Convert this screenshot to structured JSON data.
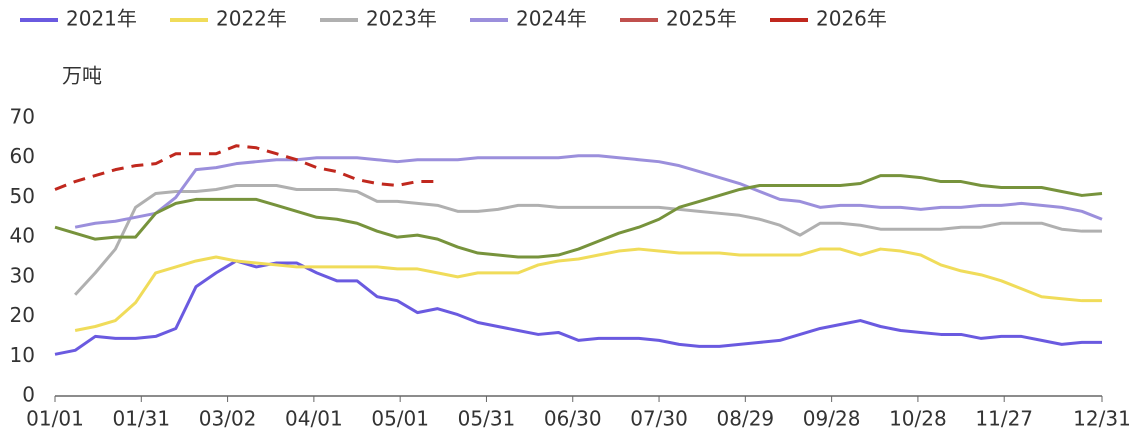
{
  "chart_data": {
    "type": "line",
    "y_label": "万吨",
    "x": [
      0,
      7,
      14,
      21,
      28,
      35,
      42,
      49,
      56,
      63,
      70,
      77,
      84,
      91,
      98,
      105,
      112,
      119,
      126,
      133,
      140,
      147,
      154,
      161,
      168,
      175,
      182,
      189,
      196,
      203,
      210,
      217,
      224,
      231,
      238,
      245,
      252,
      259,
      266,
      273,
      280,
      287,
      294,
      301,
      308,
      315,
      322,
      329,
      336,
      343,
      350,
      357,
      364
    ],
    "xlim": [
      0,
      364
    ],
    "xticks": [
      {
        "value": 0,
        "label": "01/01"
      },
      {
        "value": 30,
        "label": "01/31"
      },
      {
        "value": 60,
        "label": "03/02"
      },
      {
        "value": 90,
        "label": "04/01"
      },
      {
        "value": 120,
        "label": "05/01"
      },
      {
        "value": 150,
        "label": "05/31"
      },
      {
        "value": 180,
        "label": "06/30"
      },
      {
        "value": 210,
        "label": "07/30"
      },
      {
        "value": 240,
        "label": "08/29"
      },
      {
        "value": 270,
        "label": "09/28"
      },
      {
        "value": 300,
        "label": "10/28"
      },
      {
        "value": 330,
        "label": "11/27"
      },
      {
        "value": 364,
        "label": "12/31"
      }
    ],
    "ylim": [
      0,
      70
    ],
    "yticks": [
      0,
      10,
      20,
      30,
      40,
      50,
      60,
      70
    ],
    "grid": false,
    "legend": "top",
    "series": [
      {
        "name": "2021年",
        "color": "#6a5ae0",
        "values": [
          10.5,
          11.5,
          15,
          14.5,
          14.5,
          15,
          17,
          27.5,
          31,
          34,
          32.5,
          33.5,
          33.5,
          31,
          29,
          29,
          25,
          24,
          21,
          22,
          20.5,
          18.5,
          17.5,
          16.5,
          15.5,
          16,
          14,
          14.5,
          14.5,
          14.5,
          14,
          13,
          12.5,
          12.5,
          13,
          13.5,
          14,
          15.5,
          17,
          18,
          19,
          17.5,
          16.5,
          16,
          15.5,
          15.5,
          14.5,
          15,
          15,
          14,
          13,
          13.5,
          13.5
        ]
      },
      {
        "name": "2022年",
        "color": "#f0dc5a",
        "values": [
          null,
          16.5,
          17.5,
          19,
          23.5,
          31,
          32.5,
          34,
          35,
          34,
          33.5,
          33,
          32.5,
          32.5,
          32.5,
          32.5,
          32.5,
          32,
          32,
          31,
          30,
          31,
          31,
          31,
          33,
          34,
          34.5,
          35.5,
          36.5,
          37,
          36.5,
          36,
          36,
          36,
          35.5,
          35.5,
          35.5,
          35.5,
          37,
          37,
          35.5,
          37,
          36.5,
          35.5,
          33,
          31.5,
          30.5,
          29,
          27,
          25,
          24.5,
          24,
          24
        ]
      },
      {
        "name": "2023年",
        "color": "#b0b0b0",
        "values": [
          null,
          25.5,
          31,
          37,
          47.5,
          51,
          51.5,
          51.5,
          52,
          53,
          53,
          53,
          52,
          52,
          52,
          51.5,
          49,
          49,
          48.5,
          48,
          46.5,
          46.5,
          47,
          48,
          48,
          47.5,
          47.5,
          47.5,
          47.5,
          47.5,
          47.5,
          47,
          46.5,
          46,
          45.5,
          44.5,
          43,
          40.5,
          43.5,
          43.5,
          43,
          42,
          42,
          42,
          42,
          42.5,
          42.5,
          43.5,
          43.5,
          43.5,
          42,
          41.5,
          41.5
        ]
      },
      {
        "name": "2024年",
        "color": "#9b8fdc",
        "values": [
          null,
          42.5,
          43.5,
          44,
          45,
          46,
          50,
          57,
          57.5,
          58.5,
          59,
          59.5,
          59.5,
          60,
          60,
          60,
          59.5,
          59,
          59.5,
          59.5,
          59.5,
          60,
          60,
          60,
          60,
          60,
          60.5,
          60.5,
          60,
          59.5,
          59,
          58,
          56.5,
          55,
          53.5,
          51.5,
          49.5,
          49,
          47.5,
          48,
          48,
          47.5,
          47.5,
          47,
          47.5,
          47.5,
          48,
          48,
          48.5,
          48,
          47.5,
          46.5,
          44.5
        ]
      },
      {
        "name": "2025年",
        "color": "#77933c",
        "legend_color": "#c0504d",
        "values": [
          42.5,
          41,
          39.5,
          40,
          40,
          46,
          48.5,
          49.5,
          49.5,
          49.5,
          49.5,
          48,
          46.5,
          45,
          44.5,
          43.5,
          41.5,
          40,
          40.5,
          39.5,
          37.5,
          36,
          35.5,
          35,
          35,
          35.5,
          37,
          39,
          41,
          42.5,
          44.5,
          47.5,
          49,
          50.5,
          52,
          53,
          53,
          53,
          53,
          53,
          53.5,
          55.5,
          55.5,
          55,
          54,
          54,
          53,
          52.5,
          52.5,
          52.5,
          51.5,
          50.5,
          51
        ]
      },
      {
        "name": "2026年",
        "color": "#c0281e",
        "dash": true,
        "values": [
          52,
          54,
          55.5,
          57,
          58,
          58.5,
          61,
          61,
          61,
          63,
          62.5,
          61,
          59.5,
          57.5,
          56.5,
          54.5,
          53.5,
          53,
          54,
          54,
          null,
          null,
          null,
          null,
          null,
          null,
          null,
          null,
          null,
          null,
          null,
          null,
          null,
          null,
          null,
          null,
          null,
          null,
          null,
          null,
          null,
          null,
          null,
          null,
          null,
          null,
          null,
          null,
          null,
          null,
          null,
          null,
          null
        ]
      }
    ]
  }
}
